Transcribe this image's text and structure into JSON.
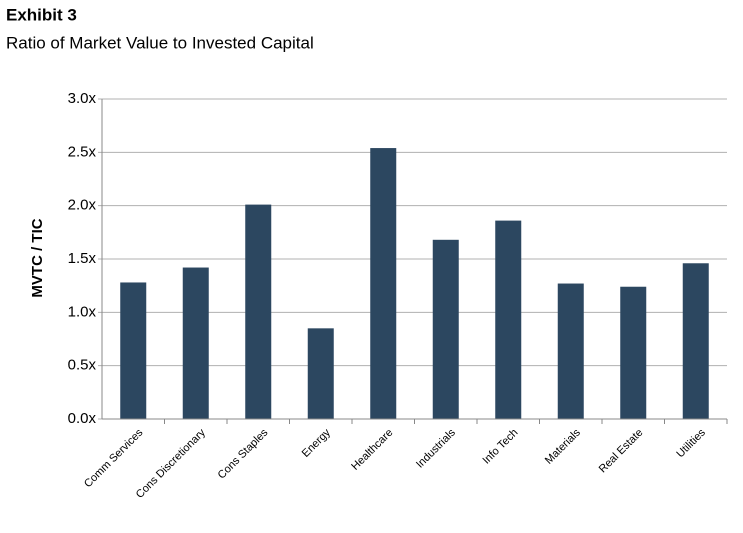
{
  "chart_data": {
    "type": "bar",
    "title": "Exhibit 3",
    "subtitle": "Ratio of Market Value to Invested Capital",
    "y_label": "MVTC / TIC",
    "categories": [
      "Comm Services",
      "Cons Discretionary",
      "Cons Staples",
      "Energy",
      "Healthcare",
      "Industrials",
      "Info Tech",
      "Materials",
      "Real Estate",
      "Utilities"
    ],
    "values": [
      1.28,
      1.42,
      2.01,
      0.85,
      2.54,
      1.68,
      1.86,
      1.27,
      1.24,
      1.46
    ],
    "color": "#2c4760",
    "ylim": [
      0,
      3
    ],
    "yticks": [
      {
        "value": 0,
        "label": "0.0x"
      },
      {
        "value": 0.5,
        "label": "0.5x"
      },
      {
        "value": 1,
        "label": "1.0x"
      },
      {
        "value": 1.5,
        "label": "1.5x"
      },
      {
        "value": 2,
        "label": "2.0x"
      },
      {
        "value": 2.5,
        "label": "2.5x"
      },
      {
        "value": 3,
        "label": "3.0x"
      }
    ],
    "grid": true
  }
}
